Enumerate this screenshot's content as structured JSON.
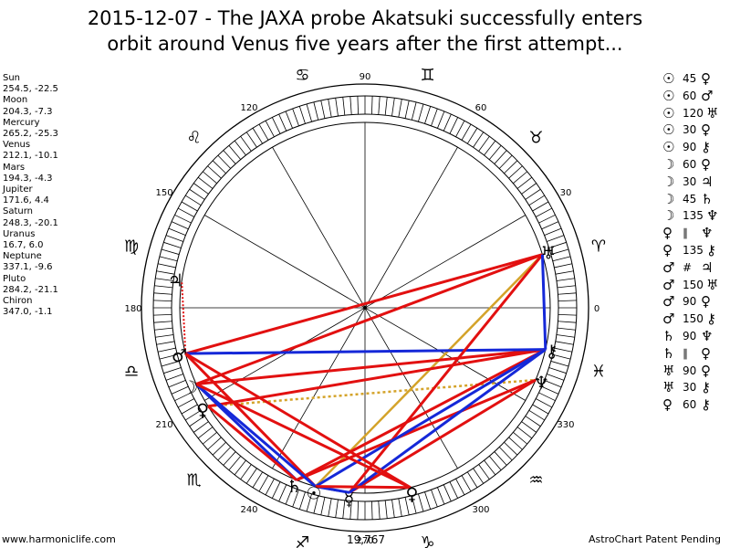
{
  "title_line1": "2015-12-07 - The JAXA probe Akatsuki successfully enters",
  "title_line2": "orbit around Venus five years after the first attempt...",
  "planets": [
    {
      "name": "Sun",
      "coords": "254.5, -22.5"
    },
    {
      "name": "Moon",
      "coords": "204.3, -7.3"
    },
    {
      "name": "Mercury",
      "coords": "265.2, -25.3"
    },
    {
      "name": "Venus",
      "coords": "212.1, -10.1"
    },
    {
      "name": "Mars",
      "coords": "194.3, -4.3"
    },
    {
      "name": "Jupiter",
      "coords": "171.6, 4.4"
    },
    {
      "name": "Saturn",
      "coords": "248.3, -20.1"
    },
    {
      "name": "Uranus",
      "coords": "16.7, 6.0"
    },
    {
      "name": "Neptune",
      "coords": "337.1, -9.6"
    },
    {
      "name": "Pluto",
      "coords": "284.2, -21.1"
    },
    {
      "name": "Chiron",
      "coords": "347.0, -1.1"
    }
  ],
  "degree_labels": [
    "0",
    "30",
    "60",
    "90",
    "120",
    "150",
    "180",
    "210",
    "240",
    "270",
    "300",
    "330"
  ],
  "sign_glyphs": [
    "♈",
    "♉",
    "♊",
    "♋",
    "♌",
    "♍",
    "♎",
    "♏",
    "♐",
    "♑",
    "♒",
    "♓"
  ],
  "aspects": [
    {
      "p1": "☉",
      "angle": "45",
      "p2": "♀"
    },
    {
      "p1": "☉",
      "angle": "60",
      "p2": "♂"
    },
    {
      "p1": "☉",
      "angle": "120",
      "p2": "♅"
    },
    {
      "p1": "☉",
      "angle": "30",
      "p2": "♀"
    },
    {
      "p1": "☉",
      "angle": "90",
      "p2": "⚷"
    },
    {
      "p1": "☽",
      "angle": "60",
      "p2": "♀"
    },
    {
      "p1": "☽",
      "angle": "30",
      "p2": "♃"
    },
    {
      "p1": "☽",
      "angle": "45",
      "p2": "♄"
    },
    {
      "p1": "☽",
      "angle": "135",
      "p2": "♆"
    },
    {
      "p1": "♀",
      "angle": "∥",
      "p2": "♆"
    },
    {
      "p1": "♀",
      "angle": "135",
      "p2": "⚷"
    },
    {
      "p1": "♂",
      "angle": "#",
      "p2": "♃"
    },
    {
      "p1": "♂",
      "angle": "150",
      "p2": "♅"
    },
    {
      "p1": "♂",
      "angle": "90",
      "p2": "♀"
    },
    {
      "p1": "♂",
      "angle": "150",
      "p2": "⚷"
    },
    {
      "p1": "♄",
      "angle": "90",
      "p2": "♆"
    },
    {
      "p1": "♄",
      "angle": "∥",
      "p2": "♀"
    },
    {
      "p1": "♅",
      "angle": "90",
      "p2": "♀"
    },
    {
      "p1": "♅",
      "angle": "30",
      "p2": "⚷"
    },
    {
      "p1": "♀",
      "angle": "60",
      "p2": "⚷"
    }
  ],
  "bottom_number": "19,767",
  "footer_left": "www.harmoniclife.com",
  "footer_right": "AstroChart Patent Pending"
}
